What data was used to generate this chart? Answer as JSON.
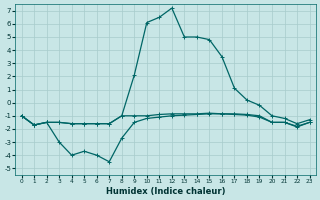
{
  "xlabel": "Humidex (Indice chaleur)",
  "bg_color": "#c8e6e6",
  "grid_color": "#a8cccc",
  "line_color": "#006666",
  "xlim": [
    -0.5,
    23.5
  ],
  "ylim": [
    -5.5,
    7.5
  ],
  "xticks": [
    0,
    1,
    2,
    3,
    4,
    5,
    6,
    7,
    8,
    9,
    10,
    11,
    12,
    13,
    14,
    15,
    16,
    17,
    18,
    19,
    20,
    21,
    22,
    23
  ],
  "yticks": [
    -5,
    -4,
    -3,
    -2,
    -1,
    0,
    1,
    2,
    3,
    4,
    5,
    6,
    7
  ],
  "curve_upper": [
    -1.0,
    -1.7,
    -1.5,
    -1.5,
    -1.6,
    -1.6,
    -1.6,
    -1.6,
    -1.0,
    2.1,
    6.1,
    6.5,
    7.2,
    5.0,
    5.0,
    4.8,
    3.5,
    1.1,
    0.2,
    -0.2,
    -1.0,
    -1.2,
    -1.6,
    -1.3
  ],
  "curve_mid": [
    -1.0,
    -1.7,
    -1.5,
    -1.5,
    -1.6,
    -1.6,
    -1.6,
    -1.6,
    -1.0,
    -1.0,
    -1.0,
    -0.9,
    -0.85,
    -0.85,
    -0.85,
    -0.8,
    -0.85,
    -0.85,
    -0.9,
    -1.0,
    -1.5,
    -1.5,
    -1.8,
    -1.5
  ],
  "curve_lower": [
    -1.0,
    -1.7,
    -1.5,
    -3.0,
    -4.0,
    -3.7,
    -4.0,
    -4.5,
    -2.7,
    -1.5,
    -1.2,
    -1.1,
    -1.0,
    -0.95,
    -0.9,
    -0.85,
    -0.85,
    -0.9,
    -0.95,
    -1.1,
    -1.5,
    -1.5,
    -1.85,
    -1.5
  ]
}
